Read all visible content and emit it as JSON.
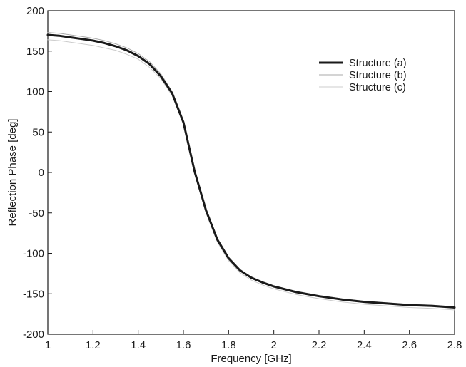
{
  "chart_data": {
    "type": "line",
    "title": "",
    "xlabel": "Frequency [GHz]",
    "ylabel": "Reflection Phase [deg]",
    "xlim": [
      1,
      2.8
    ],
    "ylim": [
      -200,
      200
    ],
    "x_ticks": [
      "1",
      "1.2",
      "1.4",
      "1.6",
      "1.8",
      "2",
      "2.2",
      "2.4",
      "2.6",
      "2.8"
    ],
    "y_ticks": [
      "200",
      "150",
      "100",
      "50",
      "0",
      "-50",
      "-100",
      "-150",
      "-200"
    ],
    "grid": false,
    "legend_position": "top-right",
    "series": [
      {
        "name": "Structure (a)",
        "color": "#1a1a1a",
        "emphasis": "bold",
        "x": [
          1.0,
          1.05,
          1.1,
          1.15,
          1.2,
          1.25,
          1.3,
          1.35,
          1.4,
          1.45,
          1.5,
          1.55,
          1.6,
          1.65,
          1.7,
          1.75,
          1.8,
          1.85,
          1.9,
          1.95,
          2.0,
          2.1,
          2.2,
          2.3,
          2.4,
          2.5,
          2.6,
          2.7,
          2.8
        ],
        "y": [
          170,
          169,
          167,
          165,
          163,
          160,
          156,
          151,
          144,
          134,
          119,
          98,
          62,
          1,
          -47,
          -83,
          -106,
          -121,
          -130,
          -136,
          -141,
          -148,
          -153,
          -157,
          -160,
          -162,
          -164,
          -165,
          -167
        ]
      },
      {
        "name": "Structure (b)",
        "color": "#aaaaaa",
        "emphasis": "thin",
        "x": [
          1.0,
          1.05,
          1.1,
          1.15,
          1.2,
          1.25,
          1.3,
          1.35,
          1.4,
          1.45,
          1.5,
          1.55,
          1.6,
          1.65,
          1.7,
          1.75,
          1.8,
          1.85,
          1.9,
          1.95,
          2.0,
          2.1,
          2.2,
          2.3,
          2.4,
          2.5,
          2.6,
          2.7,
          2.8
        ],
        "y": [
          173,
          172,
          170,
          168,
          166,
          163,
          159,
          154,
          147,
          137,
          122,
          100,
          64,
          3,
          -46,
          -82,
          -105,
          -120,
          -129,
          -135,
          -140,
          -147,
          -152,
          -156,
          -159,
          -161,
          -163,
          -164,
          -166
        ]
      },
      {
        "name": "Structure (c)",
        "color": "#cccccc",
        "emphasis": "thin",
        "x": [
          1.0,
          1.05,
          1.1,
          1.15,
          1.2,
          1.25,
          1.3,
          1.35,
          1.4,
          1.45,
          1.5,
          1.55,
          1.6,
          1.65,
          1.7,
          1.75,
          1.8,
          1.85,
          1.9,
          1.95,
          2.0,
          2.1,
          2.2,
          2.3,
          2.4,
          2.5,
          2.6,
          2.7,
          2.8
        ],
        "y": [
          164,
          163,
          161,
          159,
          157,
          154,
          151,
          146,
          140,
          130,
          116,
          95,
          59,
          -2,
          -50,
          -86,
          -109,
          -124,
          -133,
          -139,
          -144,
          -151,
          -156,
          -160,
          -163,
          -165,
          -167,
          -168,
          -170
        ]
      }
    ]
  }
}
